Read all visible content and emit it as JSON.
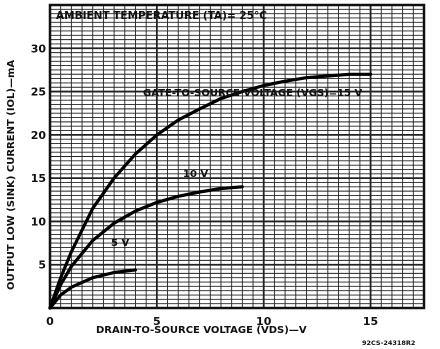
{
  "chart_data": {
    "type": "line",
    "title": "AMBIENT TEMPERATURE (TA)= 25°C",
    "xlabel": "DRAIN-TO-SOURCE VOLTAGE (VDS)—V",
    "ylabel": "OUTPUT LOW (SINK) CURRENT (IOL)—mA",
    "xlim": [
      0,
      17.5
    ],
    "ylim": [
      0,
      35
    ],
    "x_ticks": [
      "0",
      "5",
      "10",
      "15"
    ],
    "y_ticks": [
      "5",
      "10",
      "15",
      "20",
      "25",
      "30"
    ],
    "grid": true,
    "series": [
      {
        "name": "GATE-TO-SOURCE VOLTAGE (VGS)=15 V",
        "x": [
          0,
          0.5,
          1,
          2,
          3,
          4,
          5,
          6,
          7,
          8,
          9,
          10,
          11,
          12,
          13,
          14,
          15
        ],
        "values": [
          0,
          3.5,
          6.5,
          11.5,
          15,
          17.8,
          20,
          21.7,
          23,
          24.2,
          25,
          25.7,
          26.2,
          26.6,
          26.8,
          27,
          27
        ]
      },
      {
        "name": "10 V",
        "x": [
          0,
          0.5,
          1,
          2,
          3,
          4,
          5,
          6,
          7,
          8,
          9
        ],
        "values": [
          0,
          2.7,
          4.8,
          7.8,
          9.8,
          11.2,
          12.2,
          12.9,
          13.4,
          13.8,
          14
        ]
      },
      {
        "name": "5 V",
        "x": [
          0,
          0.5,
          1,
          2,
          3,
          4
        ],
        "values": [
          0,
          1.5,
          2.4,
          3.5,
          4.1,
          4.4
        ]
      }
    ],
    "annotation": "92CS-24318R2"
  }
}
